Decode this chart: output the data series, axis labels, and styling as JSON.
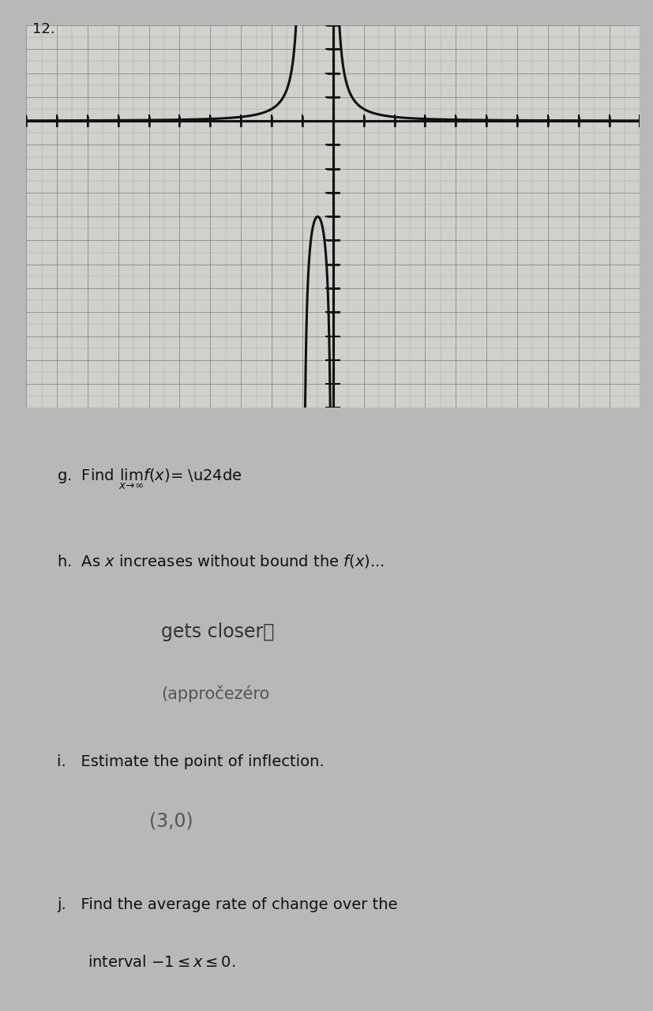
{
  "title_number": "12.",
  "page_bg": "#b8b8b8",
  "graph_bg": "#d0d0cc",
  "grid_minor_color": "#888888",
  "grid_major_color": "#666666",
  "axis_color": "#111111",
  "curve_color": "#111111",
  "curve_lw": 2.2,
  "xlim": [
    -10,
    10
  ],
  "ylim": [
    -8,
    8
  ],
  "text_color": "#111111",
  "handwritten_color_1": "#333333",
  "handwritten_color_2": "#666666",
  "font_size_label": 14,
  "font_size_hand": 17,
  "font_size_hand2": 15
}
